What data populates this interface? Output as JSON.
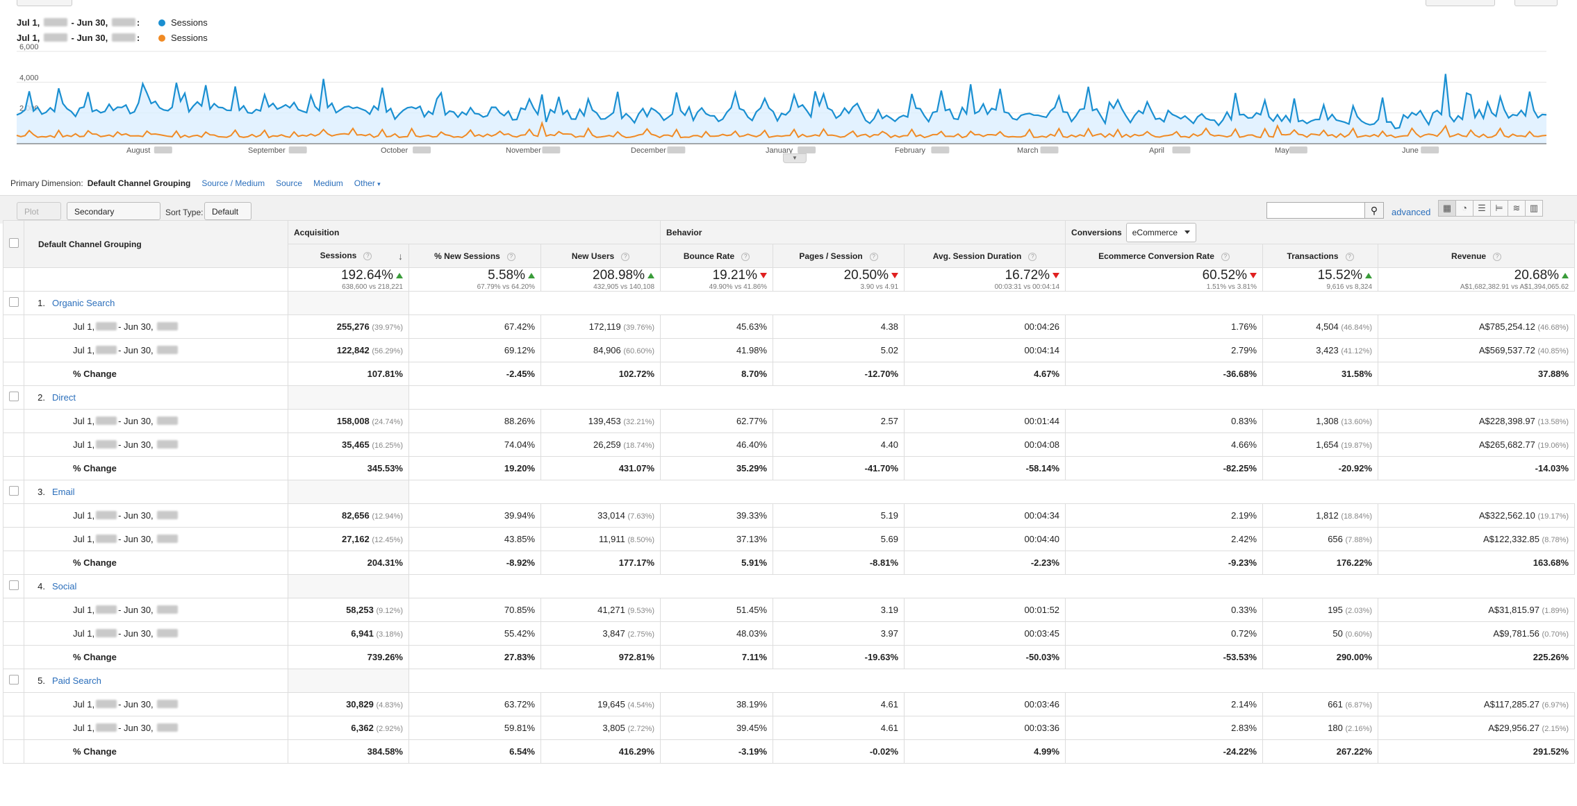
{
  "legend": [
    {
      "label": "Jul 1,",
      "mid": "- Jun 30,",
      "colon": ":",
      "series": "Sessions",
      "color": "#1a8fd1"
    },
    {
      "label": "Jul 1,",
      "mid": "- Jun 30,",
      "colon": ":",
      "series": "Sessions",
      "color": "#f08a24"
    }
  ],
  "chart_data": {
    "type": "line",
    "y_ticks": [
      "6,000",
      "4,000",
      "2,000"
    ],
    "ylim": [
      0,
      6000
    ],
    "x_ticks": [
      "August",
      "September",
      "October",
      "November",
      "December",
      "January",
      "February",
      "March",
      "April",
      "May",
      "June"
    ],
    "series": [
      {
        "name": "Sessions",
        "color": "#1a8fd1"
      },
      {
        "name": "Sessions",
        "color": "#f08a24"
      }
    ]
  },
  "dimension_bar": {
    "label": "Primary Dimension:",
    "active": "Default Channel Grouping",
    "links": [
      "Source / Medium",
      "Source",
      "Medium",
      "Other"
    ]
  },
  "toolbar": {
    "plot_rows": "Plot Rows",
    "secondary_dimension": "Secondary dimension",
    "sort_type_label": "Sort Type:",
    "sort_type_value": "Default",
    "advanced": "advanced"
  },
  "table": {
    "dim_header": "Default Channel Grouping",
    "groups": {
      "acquisition": "Acquisition",
      "behavior": "Behavior",
      "conversions": "Conversions",
      "conversions_select": "eCommerce"
    },
    "columns": [
      "Sessions",
      "% New Sessions",
      "New Users",
      "Bounce Rate",
      "Pages / Session",
      "Avg. Session Duration",
      "Ecommerce Conversion Rate",
      "Transactions",
      "Revenue"
    ],
    "summary": [
      {
        "value": "192.64%",
        "dir": "up",
        "sub": "638,600 vs 218,221"
      },
      {
        "value": "5.58%",
        "dir": "up",
        "sub": "67.79% vs 64.20%"
      },
      {
        "value": "208.98%",
        "dir": "up",
        "sub": "432,905 vs 140,108"
      },
      {
        "value": "19.21%",
        "dir": "down",
        "sub": "49.90% vs 41.86%"
      },
      {
        "value": "20.50%",
        "dir": "down",
        "sub": "3.90 vs 4.91"
      },
      {
        "value": "16.72%",
        "dir": "down",
        "sub": "00:03:31 vs 00:04:14"
      },
      {
        "value": "60.52%",
        "dir": "down",
        "sub": "1.51% vs 3.81%"
      },
      {
        "value": "15.52%",
        "dir": "up",
        "sub": "9,616 vs 8,324"
      },
      {
        "value": "20.68%",
        "dir": "up",
        "sub": "A$1,682,382.91 vs A$1,394,065.62"
      }
    ],
    "row_label_a": "Jul 1,",
    "row_label_b": "- Jun 30,",
    "change_label": "% Change",
    "channels": [
      {
        "num": "1.",
        "name": "Organic Search",
        "rows": [
          [
            "255,276",
            "(39.97%)",
            "67.42%",
            "172,119",
            "(39.76%)",
            "45.63%",
            "4.38",
            "00:04:26",
            "1.76%",
            "4,504",
            "(46.84%)",
            "A$785,254.12",
            "(46.68%)"
          ],
          [
            "122,842",
            "(56.29%)",
            "69.12%",
            "84,906",
            "(60.60%)",
            "41.98%",
            "5.02",
            "00:04:14",
            "2.79%",
            "3,423",
            "(41.12%)",
            "A$569,537.72",
            "(40.85%)"
          ]
        ],
        "change": [
          "107.81%",
          "-2.45%",
          "102.72%",
          "8.70%",
          "-12.70%",
          "4.67%",
          "-36.68%",
          "31.58%",
          "37.88%"
        ]
      },
      {
        "num": "2.",
        "name": "Direct",
        "rows": [
          [
            "158,008",
            "(24.74%)",
            "88.26%",
            "139,453",
            "(32.21%)",
            "62.77%",
            "2.57",
            "00:01:44",
            "0.83%",
            "1,308",
            "(13.60%)",
            "A$228,398.97",
            "(13.58%)"
          ],
          [
            "35,465",
            "(16.25%)",
            "74.04%",
            "26,259",
            "(18.74%)",
            "46.40%",
            "4.40",
            "00:04:08",
            "4.66%",
            "1,654",
            "(19.87%)",
            "A$265,682.77",
            "(19.06%)"
          ]
        ],
        "change": [
          "345.53%",
          "19.20%",
          "431.07%",
          "35.29%",
          "-41.70%",
          "-58.14%",
          "-82.25%",
          "-20.92%",
          "-14.03%"
        ]
      },
      {
        "num": "3.",
        "name": "Email",
        "rows": [
          [
            "82,656",
            "(12.94%)",
            "39.94%",
            "33,014",
            "(7.63%)",
            "39.33%",
            "5.19",
            "00:04:34",
            "2.19%",
            "1,812",
            "(18.84%)",
            "A$322,562.10",
            "(19.17%)"
          ],
          [
            "27,162",
            "(12.45%)",
            "43.85%",
            "11,911",
            "(8.50%)",
            "37.13%",
            "5.69",
            "00:04:40",
            "2.42%",
            "656",
            "(7.88%)",
            "A$122,332.85",
            "(8.78%)"
          ]
        ],
        "change": [
          "204.31%",
          "-8.92%",
          "177.17%",
          "5.91%",
          "-8.81%",
          "-2.23%",
          "-9.23%",
          "176.22%",
          "163.68%"
        ]
      },
      {
        "num": "4.",
        "name": "Social",
        "rows": [
          [
            "58,253",
            "(9.12%)",
            "70.85%",
            "41,271",
            "(9.53%)",
            "51.45%",
            "3.19",
            "00:01:52",
            "0.33%",
            "195",
            "(2.03%)",
            "A$31,815.97",
            "(1.89%)"
          ],
          [
            "6,941",
            "(3.18%)",
            "55.42%",
            "3,847",
            "(2.75%)",
            "48.03%",
            "3.97",
            "00:03:45",
            "0.72%",
            "50",
            "(0.60%)",
            "A$9,781.56",
            "(0.70%)"
          ]
        ],
        "change": [
          "739.26%",
          "27.83%",
          "972.81%",
          "7.11%",
          "-19.63%",
          "-50.03%",
          "-53.53%",
          "290.00%",
          "225.26%"
        ]
      },
      {
        "num": "5.",
        "name": "Paid Search",
        "rows": [
          [
            "30,829",
            "(4.83%)",
            "63.72%",
            "19,645",
            "(4.54%)",
            "38.19%",
            "4.61",
            "00:03:46",
            "2.14%",
            "661",
            "(6.87%)",
            "A$117,285.27",
            "(6.97%)"
          ],
          [
            "6,362",
            "(2.92%)",
            "59.81%",
            "3,805",
            "(2.72%)",
            "39.45%",
            "4.61",
            "00:03:36",
            "2.83%",
            "180",
            "(2.16%)",
            "A$29,956.27",
            "(2.15%)"
          ]
        ],
        "change": [
          "384.58%",
          "6.54%",
          "416.29%",
          "-3.19%",
          "-0.02%",
          "4.99%",
          "-24.22%",
          "267.22%",
          "291.52%"
        ]
      }
    ]
  }
}
